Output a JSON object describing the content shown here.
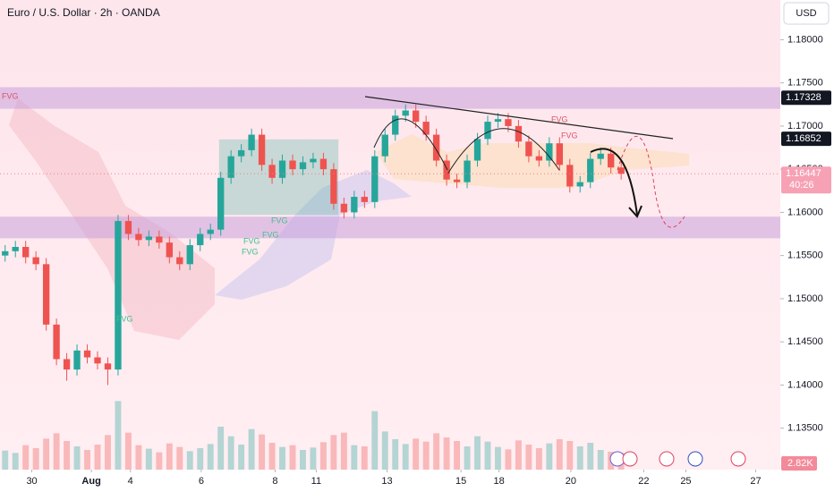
{
  "chart_data": {
    "type": "candlestick",
    "title": "Euro / U.S. Dollar · 2h · OANDA",
    "currency": "USD",
    "ylim": [
      1.1302,
      1.1846
    ],
    "yticks": [
      {
        "value": 1.18,
        "label": "1.18000"
      },
      {
        "value": 1.175,
        "label": "1.17500"
      },
      {
        "value": 1.17,
        "label": "1.17000"
      },
      {
        "value": 1.165,
        "label": "1.16500"
      },
      {
        "value": 1.16,
        "label": "1.16000"
      },
      {
        "value": 1.155,
        "label": "1.15500"
      },
      {
        "value": 1.15,
        "label": "1.15000"
      },
      {
        "value": 1.145,
        "label": "1.14500"
      },
      {
        "value": 1.14,
        "label": "1.14000"
      },
      {
        "value": 1.135,
        "label": "1.13500"
      }
    ],
    "xlim": [
      -0.5,
      75.5
    ],
    "xticks": [
      {
        "value": 2.6,
        "label": "30"
      },
      {
        "value": 8.4,
        "label": "Aug"
      },
      {
        "value": 12.2,
        "label": "4"
      },
      {
        "value": 19.1,
        "label": "6"
      },
      {
        "value": 26.3,
        "label": "8"
      },
      {
        "value": 30.3,
        "label": "11"
      },
      {
        "value": 37.2,
        "label": "13"
      },
      {
        "value": 44.4,
        "label": "15"
      },
      {
        "value": 48.1,
        "label": "18"
      },
      {
        "value": 55.1,
        "label": "20"
      },
      {
        "value": 62.2,
        "label": "22"
      },
      {
        "value": 66.3,
        "label": "25"
      },
      {
        "value": 73.1,
        "label": "27"
      }
    ],
    "up_color": "#26a69a",
    "down_color": "#ef5350",
    "open": [
      1.155,
      1.1555,
      1.156,
      1.1548,
      1.154,
      1.147,
      1.143,
      1.1418,
      1.144,
      1.1432,
      1.1425,
      1.1418,
      1.159,
      1.1575,
      1.1568,
      1.1572,
      1.1565,
      1.1548,
      1.154,
      1.1562,
      1.1575,
      1.158,
      1.164,
      1.1665,
      1.1672,
      1.169,
      1.1655,
      1.164,
      1.166,
      1.165,
      1.1658,
      1.1662,
      1.165,
      1.161,
      1.16,
      1.1618,
      1.1612,
      1.1665,
      1.169,
      1.1712,
      1.1718,
      1.1705,
      1.169,
      1.166,
      1.1638,
      1.1635,
      1.166,
      1.1685,
      1.1705,
      1.1708,
      1.17,
      1.1682,
      1.1665,
      1.166,
      1.168,
      1.1655,
      1.163,
      1.1635,
      1.1662,
      1.1668,
      1.1652
    ],
    "high": [
      1.1562,
      1.1567,
      1.1567,
      1.1555,
      1.1547,
      1.1477,
      1.1437,
      1.1447,
      1.1447,
      1.1439,
      1.1432,
      1.1597,
      1.1597,
      1.1582,
      1.1579,
      1.1579,
      1.1572,
      1.1555,
      1.1569,
      1.1582,
      1.1587,
      1.1647,
      1.1672,
      1.1679,
      1.1697,
      1.1697,
      1.1662,
      1.1667,
      1.1667,
      1.1665,
      1.1669,
      1.1669,
      1.1657,
      1.1617,
      1.1625,
      1.1625,
      1.1672,
      1.1697,
      1.1719,
      1.1725,
      1.1725,
      1.1712,
      1.1697,
      1.1667,
      1.1645,
      1.1667,
      1.1692,
      1.1712,
      1.1715,
      1.1715,
      1.1707,
      1.1689,
      1.1672,
      1.1687,
      1.1687,
      1.1662,
      1.1642,
      1.1669,
      1.1675,
      1.1675,
      1.1659
    ],
    "low": [
      1.1543,
      1.1548,
      1.1541,
      1.1533,
      1.1463,
      1.1423,
      1.1405,
      1.1411,
      1.1425,
      1.1418,
      1.14,
      1.1411,
      1.1568,
      1.1561,
      1.1561,
      1.1558,
      1.1541,
      1.1533,
      1.1533,
      1.1555,
      1.1568,
      1.1573,
      1.1633,
      1.1658,
      1.1665,
      1.1648,
      1.1633,
      1.1633,
      1.1643,
      1.1643,
      1.1651,
      1.1643,
      1.1603,
      1.1593,
      1.1593,
      1.1605,
      1.1605,
      1.1658,
      1.1683,
      1.1705,
      1.1698,
      1.1683,
      1.1653,
      1.1631,
      1.1628,
      1.1628,
      1.1653,
      1.1678,
      1.1698,
      1.1693,
      1.1675,
      1.1658,
      1.1653,
      1.1653,
      1.1648,
      1.1623,
      1.1623,
      1.1628,
      1.1655,
      1.1645,
      1.1638
    ],
    "close": [
      1.1555,
      1.156,
      1.1548,
      1.154,
      1.147,
      1.143,
      1.1418,
      1.144,
      1.1432,
      1.1425,
      1.1418,
      1.159,
      1.1575,
      1.1568,
      1.1572,
      1.1565,
      1.1548,
      1.154,
      1.1562,
      1.1575,
      1.158,
      1.164,
      1.1665,
      1.1672,
      1.169,
      1.1655,
      1.164,
      1.166,
      1.165,
      1.1658,
      1.1662,
      1.165,
      1.161,
      1.16,
      1.1618,
      1.1612,
      1.1665,
      1.169,
      1.1712,
      1.1718,
      1.1705,
      1.169,
      1.166,
      1.1638,
      1.1635,
      1.166,
      1.1685,
      1.1705,
      1.1708,
      1.17,
      1.1682,
      1.1665,
      1.166,
      1.168,
      1.1655,
      1.163,
      1.1635,
      1.1662,
      1.1668,
      1.1652,
      1.16447
    ],
    "volume": [
      3200,
      2800,
      4100,
      3600,
      5200,
      6100,
      4800,
      3900,
      3300,
      4200,
      5800,
      11500,
      6200,
      4100,
      3500,
      2900,
      4400,
      3800,
      3100,
      3600,
      4300,
      7200,
      5600,
      4200,
      6800,
      5900,
      4500,
      3800,
      4100,
      3300,
      3700,
      4600,
      5800,
      6200,
      4100,
      3900,
      9800,
      6400,
      5100,
      4300,
      5200,
      4700,
      6100,
      5400,
      4800,
      3900,
      5600,
      4700,
      3800,
      3400,
      4900,
      4200,
      3600,
      4400,
      5100,
      4800,
      3900,
      4500,
      3300,
      3000,
      2820
    ],
    "vlim": [
      0,
      12000
    ],
    "volume_label": "2.82K",
    "zones": [
      {
        "top": 1.1745,
        "bottom": 1.172
      },
      {
        "top": 1.1595,
        "bottom": 1.157
      }
    ],
    "price_labels": [
      {
        "value": 1.17328,
        "label": "1.17328"
      },
      {
        "value": 1.16852,
        "label": "1.16852"
      },
      {
        "value": 1.16447,
        "label": "1.16447",
        "countdown": "40:26"
      }
    ],
    "annotations": [
      "FVG",
      "FVG",
      "FVG",
      "FVG",
      "FVG",
      "FVG",
      "FVG",
      "FVG"
    ]
  }
}
